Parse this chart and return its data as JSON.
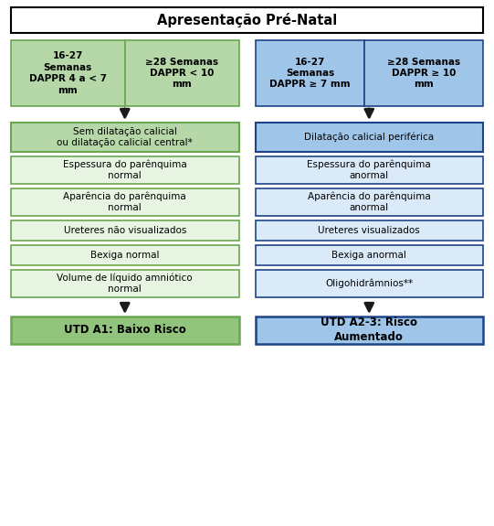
{
  "title": "Apresentação Pré-Natal",
  "left_top_box1": "16-27\nSemanas\nDAPPR 4 a < 7\nmm",
  "left_top_box2": "≥28 Semanas\nDAPPR < 10\nmm",
  "right_top_box1": "16-27\nSemanas\nDAPPR ≥ 7 mm",
  "right_top_box2": "≥28 Semanas\nDAPPR ≥ 10\nmm",
  "left_boxes": [
    "Sem dilatação calicial\nou dilatação calicial central*",
    "Espessura do parênquima\nnormal",
    "Aparência do parênquima\nnormal",
    "Ureteres não visualizados",
    "Bexiga normal",
    "Volume de líquido amniótico\nnormal"
  ],
  "right_boxes": [
    "Dilatação calicial periférica",
    "Espessura do parênquima\nanormal",
    "Aparência do parênquima\nanormal",
    "Ureteres visualizados",
    "Bexiga anormal",
    "Oligohidrâmnios**"
  ],
  "left_result": "UTD A1: Baixo Risco",
  "right_result": "UTD A2-3: Risco\nAumentado",
  "green_fill": "#e8f5e2",
  "green_border": "#6aa84f",
  "green_dark_fill": "#b6d7a8",
  "blue_fill": "#daeaf9",
  "blue_border": "#1c4587",
  "blue_dark_fill": "#9fc5e8",
  "title_border": "#000000",
  "title_fill": "#ffffff",
  "result_green_fill": "#93c47d",
  "result_blue_fill": "#9fc5e8",
  "arrow_color": "#1a1a1a",
  "text_color": "#000000",
  "font_size": 7.5,
  "title_font_size": 10.5
}
